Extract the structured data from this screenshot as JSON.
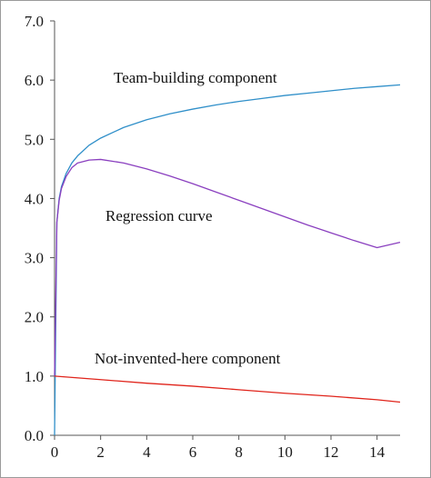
{
  "chart_data": {
    "type": "line",
    "title": "",
    "xlabel": "",
    "ylabel": "",
    "xlim": [
      0,
      15
    ],
    "ylim": [
      0,
      7
    ],
    "x_ticks": [
      0,
      2,
      4,
      6,
      8,
      10,
      12,
      14
    ],
    "x_tick_labels": [
      "0",
      "2",
      "4",
      "6",
      "8",
      "10",
      "12",
      "14"
    ],
    "y_ticks": [
      0,
      1,
      2,
      3,
      4,
      5,
      6,
      7
    ],
    "y_tick_labels": [
      "0.0",
      "1.0",
      "2.0",
      "3.0",
      "4.0",
      "5.0",
      "6.0",
      "7.0"
    ],
    "grid": false,
    "legend": "none",
    "series": [
      {
        "name": "Team-building component",
        "color": "#2f8fc9",
        "x": [
          0,
          0.1,
          0.2,
          0.3,
          0.5,
          0.75,
          1,
          1.5,
          2,
          3,
          4,
          5,
          6,
          7,
          8,
          9,
          10,
          11,
          12,
          13,
          14,
          15
        ],
        "y": [
          0.0,
          3.6,
          4.0,
          4.2,
          4.42,
          4.6,
          4.72,
          4.9,
          5.02,
          5.2,
          5.33,
          5.43,
          5.51,
          5.58,
          5.64,
          5.69,
          5.74,
          5.78,
          5.82,
          5.86,
          5.89,
          5.92
        ]
      },
      {
        "name": "Regression curve",
        "color": "#8a3fbf",
        "x": [
          0,
          0.1,
          0.2,
          0.3,
          0.5,
          0.75,
          1,
          1.5,
          2,
          3,
          4,
          5,
          6,
          7,
          8,
          9,
          10,
          11,
          12,
          13,
          14,
          15
        ],
        "y": [
          1.0,
          3.6,
          3.97,
          4.17,
          4.37,
          4.52,
          4.6,
          4.65,
          4.66,
          4.6,
          4.5,
          4.38,
          4.25,
          4.11,
          3.97,
          3.83,
          3.69,
          3.55,
          3.42,
          3.29,
          3.17,
          3.26
        ]
      },
      {
        "name": "Not-invented-here component",
        "color": "#e0241b",
        "x": [
          0,
          2,
          4,
          6,
          8,
          10,
          12,
          14,
          15
        ],
        "y": [
          1.0,
          0.94,
          0.88,
          0.83,
          0.77,
          0.71,
          0.66,
          0.6,
          0.56
        ]
      }
    ],
    "annotations": [
      "Team-building component",
      "Regression curve",
      "Not-invented-here component"
    ]
  }
}
